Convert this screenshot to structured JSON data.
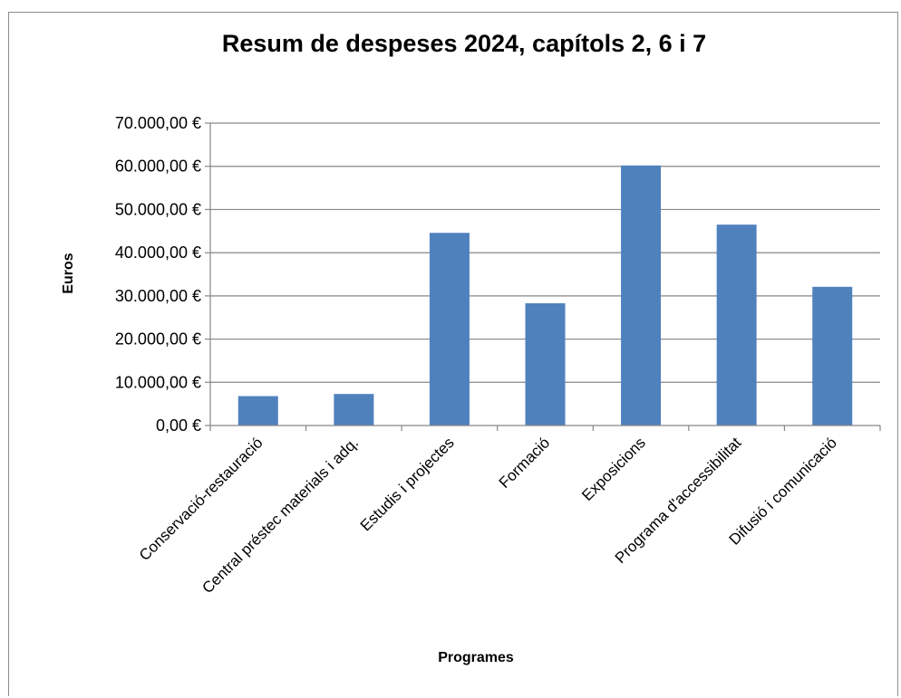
{
  "chart_data": {
    "type": "bar",
    "title": "Resum de despeses 2024, capítols 2, 6 i 7",
    "xlabel": "Programes",
    "ylabel": "Euros",
    "categories": [
      "Conservació-restauració",
      "Central préstec materials i adq.",
      "Estudis i projectes",
      "Formació",
      "Exposicions",
      "Programa d'accessibilitat",
      "Difusió i comunicació"
    ],
    "values": [
      6800,
      7300,
      44600,
      28300,
      60200,
      46500,
      32100
    ],
    "ylim": [
      0,
      70000
    ],
    "yticks": [
      0,
      10000,
      20000,
      30000,
      40000,
      50000,
      60000,
      70000
    ],
    "ytick_labels": [
      "0,00 €",
      "10.000,00 €",
      "20.000,00 €",
      "30.000,00 €",
      "40.000,00 €",
      "50.000,00 €",
      "60.000,00 €",
      "70.000,00 €"
    ],
    "grid": true,
    "legend": "none",
    "bar_color": "#4f81bd",
    "grid_color": "#868686"
  }
}
